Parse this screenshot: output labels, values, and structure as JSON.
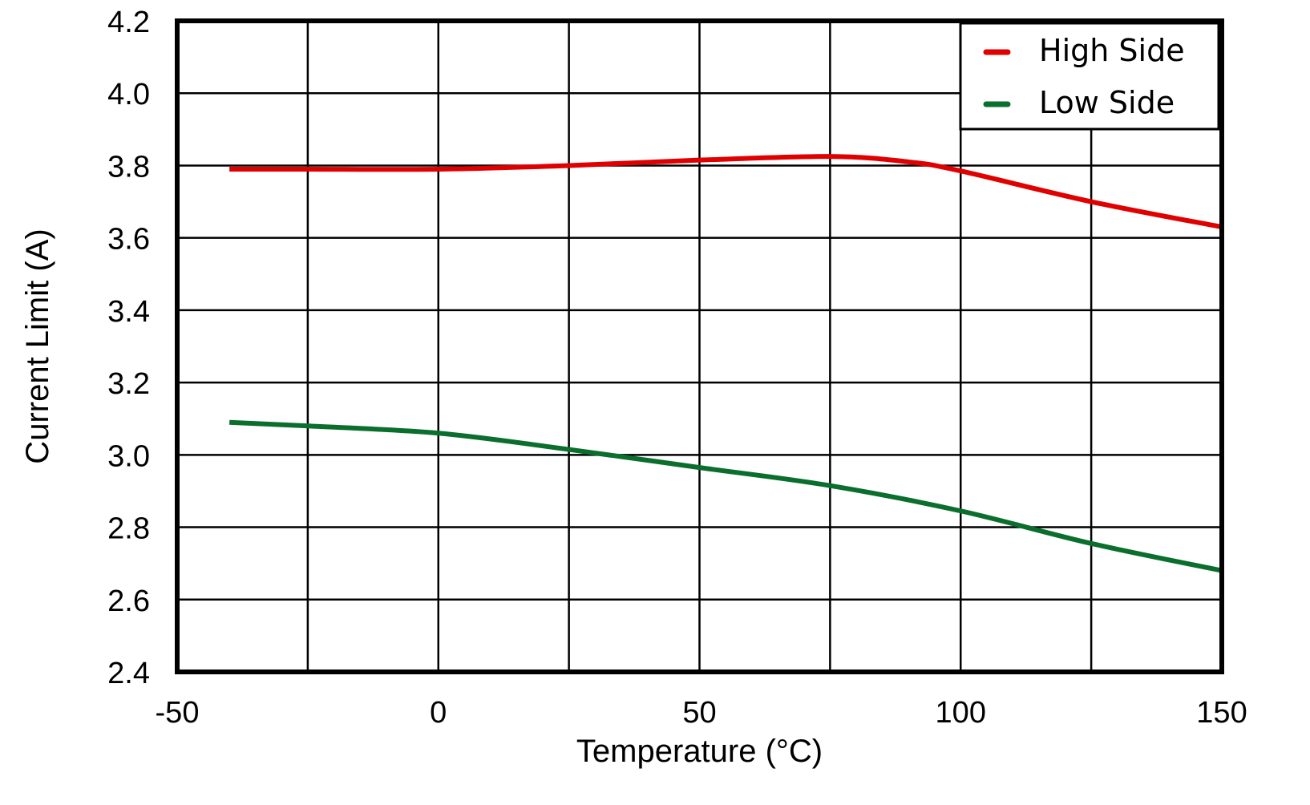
{
  "chart_data": {
    "type": "line",
    "title": "",
    "xlabel": "Temperature (°C)",
    "ylabel": "Current Limit (A)",
    "xlim": [
      -50,
      150
    ],
    "ylim": [
      2.4,
      4.2
    ],
    "xticks": [
      -50,
      -25,
      0,
      25,
      50,
      75,
      100,
      125,
      150
    ],
    "xtick_labels": [
      "-50",
      "0",
      "50",
      "100",
      "150"
    ],
    "xtick_label_values": [
      -50,
      0,
      50,
      100,
      150
    ],
    "yticks": [
      2.4,
      2.6,
      2.8,
      3.0,
      3.2,
      3.4,
      3.6,
      3.8,
      4.0,
      4.2
    ],
    "ytick_labels": [
      "2.4",
      "2.6",
      "2.8",
      "3.0",
      "3.2",
      "3.4",
      "3.6",
      "3.8",
      "4.0",
      "4.2"
    ],
    "grid": true,
    "legend_position": "top-right",
    "series": [
      {
        "name": "High Side",
        "color": "#e00000",
        "x": [
          -40,
          -25,
          0,
          25,
          50,
          75,
          90,
          100,
          125,
          150
        ],
        "y": [
          3.79,
          3.79,
          3.79,
          3.8,
          3.815,
          3.825,
          3.81,
          3.785,
          3.7,
          3.63
        ]
      },
      {
        "name": "Low Side",
        "color": "#0a6e2d",
        "x": [
          -40,
          -25,
          0,
          25,
          50,
          75,
          100,
          125,
          150
        ],
        "y": [
          3.09,
          3.08,
          3.06,
          3.015,
          2.965,
          2.915,
          2.845,
          2.755,
          2.68
        ]
      }
    ]
  }
}
